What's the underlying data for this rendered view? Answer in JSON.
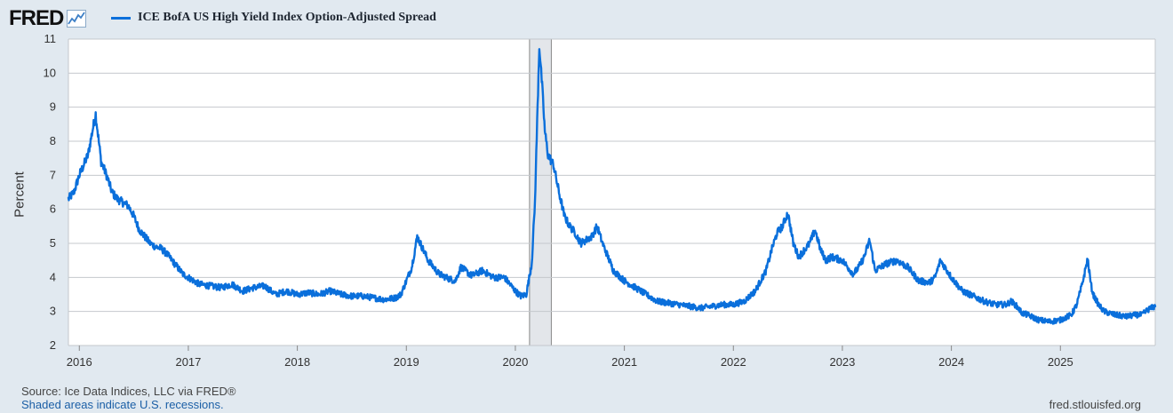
{
  "header": {
    "logo_text": "FRED",
    "logo_icon": "fred-line-graph-icon",
    "legend_label": "ICE BofA US High Yield Index Option-Adjusted Spread",
    "legend_color": "#0a6fdb"
  },
  "footer": {
    "source": "Source: Ice Data Indices, LLC via FRED®",
    "note": "Shaded areas indicate U.S. recessions.",
    "url": "fred.stlouisfed.org"
  },
  "chart_data": {
    "type": "line",
    "ylabel": "Percent",
    "ylim": [
      2,
      11
    ],
    "yticks": [
      2,
      3,
      4,
      5,
      6,
      7,
      8,
      9,
      10,
      11
    ],
    "xlim": [
      2015.9,
      2025.87
    ],
    "xticks": [
      "2016",
      "2017",
      "2018",
      "2019",
      "2020",
      "2021",
      "2022",
      "2023",
      "2024",
      "2025"
    ],
    "grid": "horizontal",
    "line_color": "#0a6fdb",
    "recessions": [
      {
        "start": 2020.13,
        "end": 2020.33
      }
    ],
    "series": [
      {
        "name": "ICE BofA US High Yield Index Option-Adjusted Spread",
        "x": [
          2015.9,
          2015.95,
          2016.0,
          2016.04,
          2016.08,
          2016.12,
          2016.15,
          2016.2,
          2016.25,
          2016.3,
          2016.35,
          2016.4,
          2016.45,
          2016.5,
          2016.55,
          2016.6,
          2016.65,
          2016.7,
          2016.75,
          2016.8,
          2016.85,
          2016.9,
          2016.95,
          2017.0,
          2017.1,
          2017.2,
          2017.3,
          2017.4,
          2017.5,
          2017.6,
          2017.7,
          2017.8,
          2017.9,
          2018.0,
          2018.1,
          2018.2,
          2018.3,
          2018.4,
          2018.5,
          2018.6,
          2018.7,
          2018.8,
          2018.9,
          2018.95,
          2019.0,
          2019.05,
          2019.1,
          2019.2,
          2019.3,
          2019.4,
          2019.45,
          2019.5,
          2019.6,
          2019.7,
          2019.8,
          2019.9,
          2020.0,
          2020.05,
          2020.1,
          2020.15,
          2020.18,
          2020.2,
          2020.22,
          2020.25,
          2020.27,
          2020.3,
          2020.35,
          2020.4,
          2020.45,
          2020.5,
          2020.55,
          2020.6,
          2020.7,
          2020.75,
          2020.8,
          2020.85,
          2020.9,
          2021.0,
          2021.1,
          2021.2,
          2021.3,
          2021.4,
          2021.5,
          2021.6,
          2021.7,
          2021.8,
          2021.9,
          2022.0,
          2022.1,
          2022.2,
          2022.3,
          2022.35,
          2022.4,
          2022.45,
          2022.5,
          2022.55,
          2022.6,
          2022.65,
          2022.7,
          2022.75,
          2022.8,
          2022.85,
          2022.9,
          2023.0,
          2023.1,
          2023.15,
          2023.2,
          2023.25,
          2023.3,
          2023.4,
          2023.5,
          2023.6,
          2023.7,
          2023.8,
          2023.85,
          2023.9,
          2024.0,
          2024.1,
          2024.2,
          2024.3,
          2024.4,
          2024.5,
          2024.55,
          2024.6,
          2024.65,
          2024.7,
          2024.8,
          2024.9,
          2025.0,
          2025.1,
          2025.15,
          2025.2,
          2025.25,
          2025.28,
          2025.3,
          2025.35,
          2025.4,
          2025.5,
          2025.6,
          2025.7,
          2025.75,
          2025.8,
          2025.87
        ],
        "values": [
          6.3,
          6.5,
          7.0,
          7.3,
          7.6,
          8.3,
          8.8,
          7.4,
          7.0,
          6.5,
          6.3,
          6.2,
          6.1,
          5.8,
          5.4,
          5.2,
          5.0,
          4.9,
          4.85,
          4.7,
          4.5,
          4.3,
          4.1,
          4.0,
          3.8,
          3.75,
          3.7,
          3.8,
          3.6,
          3.7,
          3.75,
          3.5,
          3.6,
          3.5,
          3.55,
          3.5,
          3.6,
          3.5,
          3.45,
          3.45,
          3.4,
          3.35,
          3.4,
          3.5,
          3.9,
          4.3,
          5.2,
          4.5,
          4.1,
          3.95,
          3.9,
          4.3,
          4.05,
          4.2,
          4.0,
          4.0,
          3.6,
          3.45,
          3.5,
          4.4,
          6.2,
          8.6,
          10.8,
          9.4,
          8.3,
          7.6,
          7.3,
          6.5,
          5.8,
          5.5,
          5.3,
          5.0,
          5.2,
          5.5,
          5.0,
          4.6,
          4.2,
          3.9,
          3.7,
          3.5,
          3.3,
          3.25,
          3.2,
          3.15,
          3.1,
          3.15,
          3.2,
          3.2,
          3.3,
          3.6,
          4.2,
          4.8,
          5.3,
          5.5,
          5.9,
          5.0,
          4.6,
          4.8,
          5.0,
          5.4,
          4.8,
          4.5,
          4.6,
          4.5,
          4.1,
          4.3,
          4.6,
          5.1,
          4.2,
          4.4,
          4.5,
          4.3,
          3.9,
          3.85,
          4.0,
          4.5,
          4.0,
          3.6,
          3.45,
          3.3,
          3.2,
          3.2,
          3.3,
          3.15,
          2.95,
          2.9,
          2.75,
          2.7,
          2.75,
          2.9,
          3.2,
          3.8,
          4.55,
          3.8,
          3.5,
          3.2,
          3.0,
          2.9,
          2.85,
          2.9,
          2.9,
          3.05,
          3.15
        ]
      }
    ]
  }
}
